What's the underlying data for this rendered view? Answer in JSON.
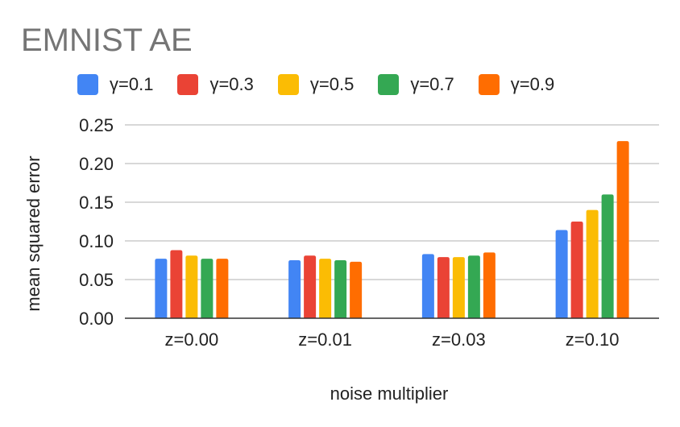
{
  "chart_data": {
    "type": "bar",
    "title": "EMNIST AE",
    "xlabel": "noise multiplier",
    "ylabel": "mean squared error",
    "categories": [
      "z=0.00",
      "z=0.01",
      "z=0.03",
      "z=0.10"
    ],
    "ylim": [
      0,
      0.25
    ],
    "yticks": [
      "0.00",
      "0.05",
      "0.10",
      "0.15",
      "0.20",
      "0.25"
    ],
    "grid": true,
    "legend_position": "top",
    "series": [
      {
        "name": "γ=0.1",
        "color": "#4285F4",
        "values": [
          0.077,
          0.075,
          0.083,
          0.114
        ]
      },
      {
        "name": "γ=0.3",
        "color": "#EA4335",
        "values": [
          0.088,
          0.081,
          0.079,
          0.125
        ]
      },
      {
        "name": "γ=0.5",
        "color": "#FBBC04",
        "values": [
          0.081,
          0.077,
          0.079,
          0.14
        ]
      },
      {
        "name": "γ=0.7",
        "color": "#34A853",
        "values": [
          0.077,
          0.075,
          0.081,
          0.16
        ]
      },
      {
        "name": "γ=0.9",
        "color": "#FF6D01",
        "values": [
          0.077,
          0.073,
          0.085,
          0.229
        ]
      }
    ]
  }
}
